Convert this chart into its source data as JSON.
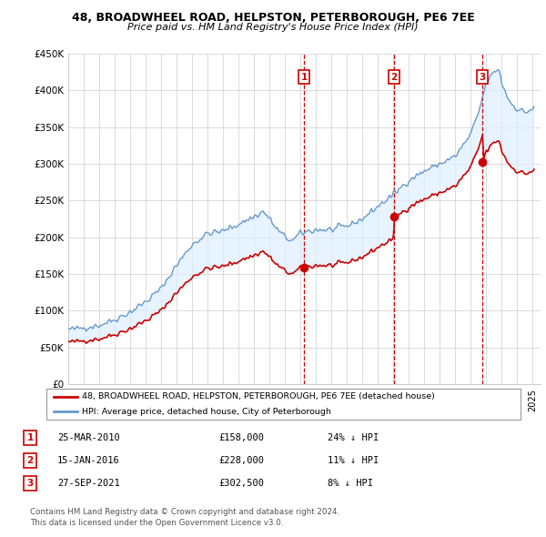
{
  "title_line1": "48, BROADWHEEL ROAD, HELPSTON, PETERBOROUGH, PE6 7EE",
  "title_line2": "Price paid vs. HM Land Registry's House Price Index (HPI)",
  "ylim": [
    0,
    450000
  ],
  "yticks": [
    0,
    50000,
    100000,
    150000,
    200000,
    250000,
    300000,
    350000,
    400000,
    450000
  ],
  "ytick_labels": [
    "£0",
    "£50K",
    "£100K",
    "£150K",
    "£200K",
    "£250K",
    "£300K",
    "£350K",
    "£400K",
    "£450K"
  ],
  "sale_years": [
    2010.23,
    2016.04,
    2021.75
  ],
  "sale_prices": [
    158000,
    228000,
    302500
  ],
  "sale_labels": [
    "1",
    "2",
    "3"
  ],
  "legend_sale": "48, BROADWHEEL ROAD, HELPSTON, PETERBOROUGH, PE6 7EE (detached house)",
  "legend_hpi": "HPI: Average price, detached house, City of Peterborough",
  "table_entries": [
    {
      "num": "1",
      "date": "25-MAR-2010",
      "price": "£158,000",
      "hpi": "24% ↓ HPI"
    },
    {
      "num": "2",
      "date": "15-JAN-2016",
      "price": "£228,000",
      "hpi": "11% ↓ HPI"
    },
    {
      "num": "3",
      "date": "27-SEP-2021",
      "price": "£302,500",
      "hpi": "8% ↓ HPI"
    }
  ],
  "footnote": "Contains HM Land Registry data © Crown copyright and database right 2024.\nThis data is licensed under the Open Government Licence v3.0.",
  "sale_line_color": "#cc0000",
  "hpi_line_color": "#6699cc",
  "hpi_fill_color": "#ddeeff",
  "vline_color": "#cc0000",
  "box_color": "#cc0000",
  "grid_color": "#cccccc",
  "xlim_left": 1995,
  "xlim_right": 2025.5
}
